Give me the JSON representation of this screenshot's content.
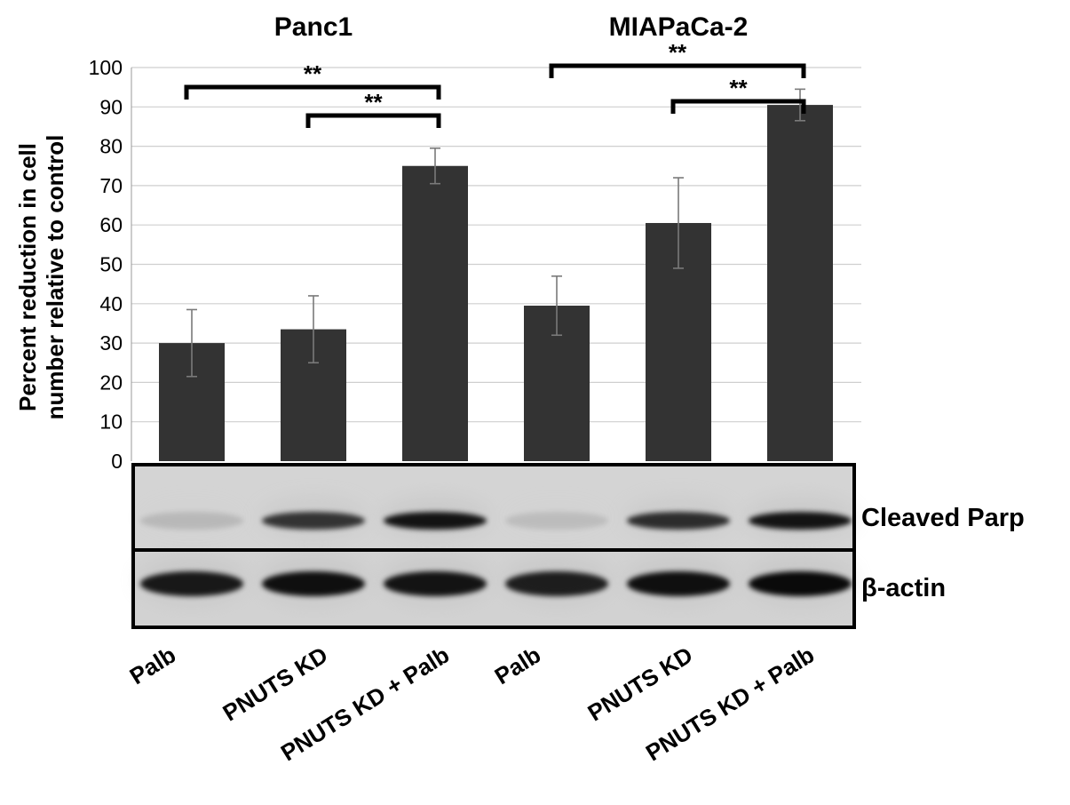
{
  "chart_data": {
    "type": "bar",
    "ylabel_lines": [
      "Percent reduction in cell",
      "number relative to control"
    ],
    "ylim": [
      0,
      100
    ],
    "yticks": [
      0,
      10,
      20,
      30,
      40,
      50,
      60,
      70,
      80,
      90,
      100
    ],
    "grid": true,
    "groups": [
      {
        "title": "Panc1",
        "bar_indices": [
          0,
          1,
          2
        ]
      },
      {
        "title": "MIAPaCa-2",
        "bar_indices": [
          3,
          4,
          5
        ]
      }
    ],
    "categories": [
      "Palb",
      "PNUTS KD",
      "PNUTS KD + Palb",
      "Palb",
      "PNUTS KD",
      "PNUTS KD + Palb"
    ],
    "values": [
      30,
      33.5,
      75,
      39.5,
      60.5,
      90.5
    ],
    "errors": [
      8.5,
      8.5,
      4.5,
      7.5,
      11.5,
      4
    ],
    "bar_color": "#333333",
    "significance": [
      {
        "from": 0,
        "to": 2,
        "label": "**"
      },
      {
        "from": 1,
        "to": 2,
        "label": "**"
      },
      {
        "from": 3,
        "to": 5,
        "label": "**"
      },
      {
        "from": 4,
        "to": 5,
        "label": "**"
      }
    ]
  },
  "blot": {
    "rows": [
      {
        "label": "Cleaved Parp",
        "intensity": [
          0.12,
          0.75,
          0.9,
          0.1,
          0.78,
          0.9
        ]
      },
      {
        "label": "β-actin",
        "intensity": [
          0.88,
          0.92,
          0.9,
          0.85,
          0.92,
          0.95
        ]
      }
    ]
  }
}
